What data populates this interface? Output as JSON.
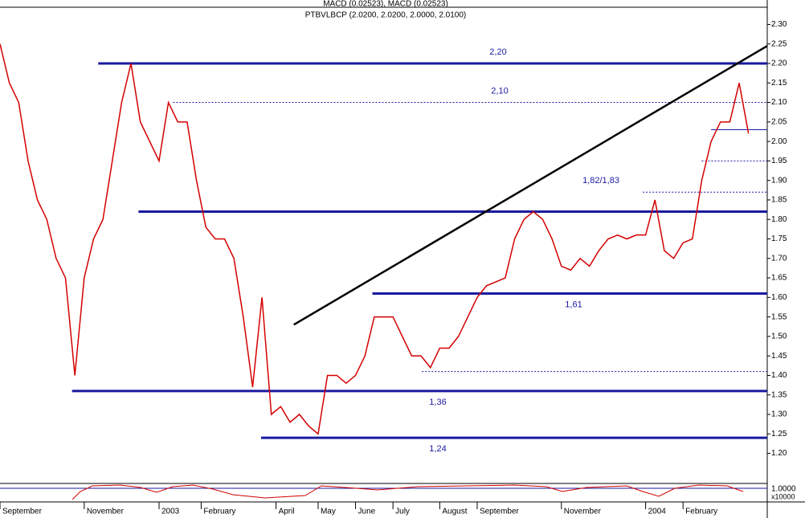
{
  "chart_data": {
    "type": "line",
    "title": "MACD (0.02523), MACD (0.02523)",
    "subtitle": "PTBVLBCP (2.0200, 2.0200, 2.0000, 2.0100)",
    "x": [
      0,
      1,
      2,
      3,
      4,
      5,
      6,
      7,
      8,
      9,
      10,
      11,
      12,
      13,
      14,
      15,
      16,
      17,
      18,
      19,
      20,
      21,
      22,
      23,
      24,
      25,
      26,
      27,
      28,
      29,
      30,
      31,
      32,
      33,
      34,
      35,
      36,
      37,
      38,
      39,
      40,
      41,
      42,
      43,
      44,
      45,
      46,
      47,
      48,
      49,
      50,
      51,
      52,
      53,
      54,
      55,
      56,
      57,
      58,
      59,
      60,
      61,
      62,
      63,
      64,
      65,
      66,
      67,
      68,
      69,
      70,
      71,
      72,
      73,
      74,
      75,
      76,
      77,
      78,
      79,
      80
    ],
    "series": [
      {
        "color": "#d40000",
        "values": [
          2.25,
          2.15,
          2.1,
          1.95,
          1.85,
          1.8,
          1.7,
          1.65,
          1.4,
          1.65,
          1.75,
          1.8,
          1.95,
          2.1,
          2.2,
          2.05,
          2.0,
          1.95,
          2.1,
          2.05,
          2.05,
          1.9,
          1.78,
          1.75,
          1.75,
          1.7,
          1.55,
          1.37,
          1.6,
          1.3,
          1.32,
          1.28,
          1.3,
          1.27,
          1.25,
          1.4,
          1.4,
          1.38,
          1.4,
          1.45,
          1.55,
          1.55,
          1.55,
          1.5,
          1.45,
          1.45,
          1.42,
          1.47,
          1.47,
          1.5,
          1.55,
          1.6,
          1.63,
          1.64,
          1.65,
          1.75,
          1.8,
          1.82,
          1.8,
          1.75,
          1.68,
          1.67,
          1.7,
          1.68,
          1.72,
          1.75,
          1.76,
          1.75,
          1.76,
          1.76,
          1.85,
          1.72,
          1.7,
          1.74,
          1.75,
          1.9,
          2.0,
          2.05,
          2.05,
          2.15,
          2.02
        ]
      }
    ],
    "xlim": [
      0,
      82
    ],
    "xticks": [
      {
        "value": 0,
        "label": "September"
      },
      {
        "value": 9,
        "label": "November"
      },
      {
        "value": 17,
        "label": "2003"
      },
      {
        "value": 21.5,
        "label": "February"
      },
      {
        "value": 29.5,
        "label": "April"
      },
      {
        "value": 34,
        "label": "May"
      },
      {
        "value": 38,
        "label": "June"
      },
      {
        "value": 42,
        "label": "July"
      },
      {
        "value": 47,
        "label": "August"
      },
      {
        "value": 51,
        "label": "September"
      },
      {
        "value": 60,
        "label": "November"
      },
      {
        "value": 69,
        "label": "2004"
      },
      {
        "value": 73,
        "label": "February"
      }
    ],
    "ylim": [
      1.127,
      2.338
    ],
    "yticks": [
      {
        "value": 1.2,
        "label": "1.20"
      },
      1.25,
      {
        "value": 1.3,
        "label": "1.30"
      },
      1.35,
      {
        "value": 1.4,
        "label": "1.40"
      },
      1.45,
      {
        "value": 1.5,
        "label": "1.50"
      },
      1.55,
      {
        "value": 1.6,
        "label": "1.60"
      },
      1.65,
      {
        "value": 1.7,
        "label": "1.70"
      },
      1.75,
      {
        "value": 1.8,
        "label": "1.80"
      },
      1.85,
      {
        "value": 1.9,
        "label": "1.90"
      },
      1.95,
      {
        "value": 2.0,
        "label": "2.00"
      },
      2.05,
      {
        "value": 2.1,
        "label": "2.10"
      },
      2.15,
      {
        "value": 2.2,
        "label": "2.20"
      },
      2.25,
      {
        "value": 2.3,
        "label": "2.30"
      }
    ],
    "levels": [
      {
        "value": 2.2,
        "start": 10.5,
        "style": "solid",
        "label": "2,20"
      },
      {
        "value": 2.1,
        "start": 18.5,
        "style": "dashed",
        "label": "2,10"
      },
      {
        "value": 2.03,
        "start": 76,
        "style": "thin"
      },
      {
        "value": 1.95,
        "start": 75,
        "style": "dashed"
      },
      {
        "value": 1.87,
        "start": 68.7,
        "style": "dashed",
        "label": "1,82/1,83"
      },
      {
        "value": 1.82,
        "start": 14.8,
        "style": "solid"
      },
      {
        "value": 1.61,
        "start": 39.8,
        "style": "solid",
        "label": "1,61"
      },
      {
        "value": 1.41,
        "start": 45.1,
        "style": "dashed"
      },
      {
        "value": 1.36,
        "start": 7.7,
        "style": "solid",
        "label": "1,36"
      },
      {
        "value": 1.24,
        "start": 27.9,
        "style": "solid",
        "label": "1,24"
      }
    ],
    "trendline": {
      "x": [
        31.4,
        82
      ],
      "values": [
        1.53,
        2.245
      ]
    },
    "indicator_label": "1.0000",
    "indicator_scale": "x10000"
  }
}
